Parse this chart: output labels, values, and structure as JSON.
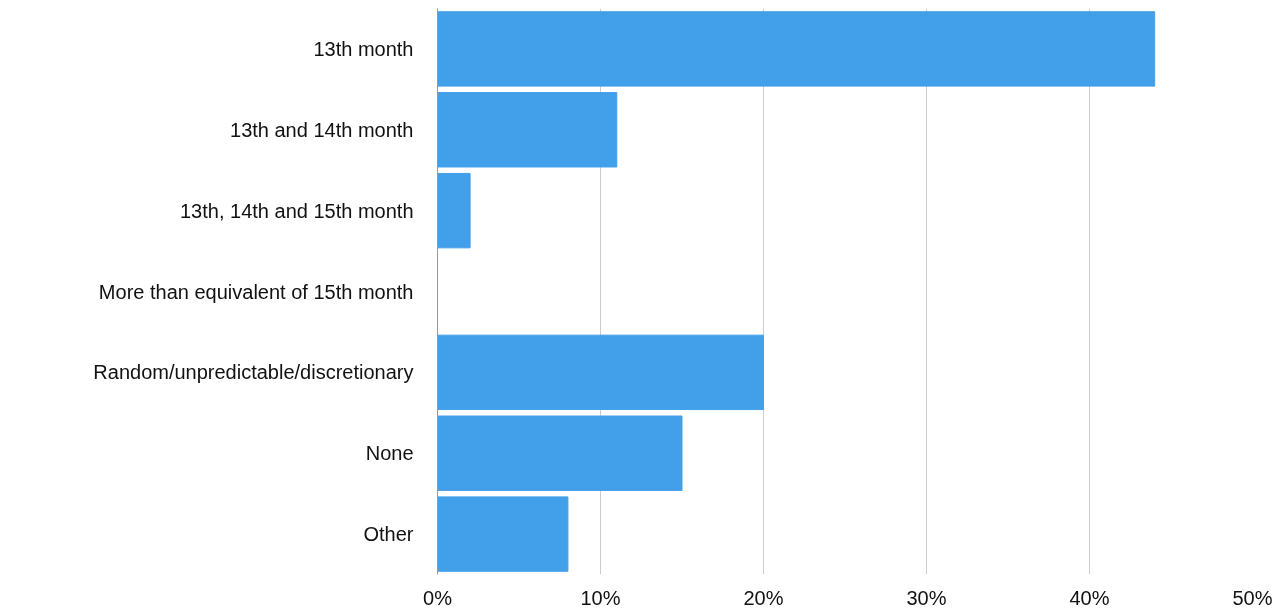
{
  "chart_data": {
    "type": "bar",
    "orientation": "horizontal",
    "categories": [
      "13th month",
      "13th and 14th month",
      "13th, 14th and 15th month",
      "More than equivalent of 15th month",
      "Random/unpredictable/discretionary",
      "None",
      "Other"
    ],
    "values": [
      44,
      11,
      2,
      0,
      20,
      15,
      8
    ],
    "color": "#429fea",
    "xlim": [
      0,
      50
    ],
    "xticks": [
      {
        "value": 0,
        "label": "0%"
      },
      {
        "value": 10,
        "label": "10%"
      },
      {
        "value": 20,
        "label": "20%"
      },
      {
        "value": 30,
        "label": "30%"
      },
      {
        "value": 40,
        "label": "40%"
      },
      {
        "value": 50,
        "label": "50%"
      }
    ],
    "grid": "x"
  }
}
